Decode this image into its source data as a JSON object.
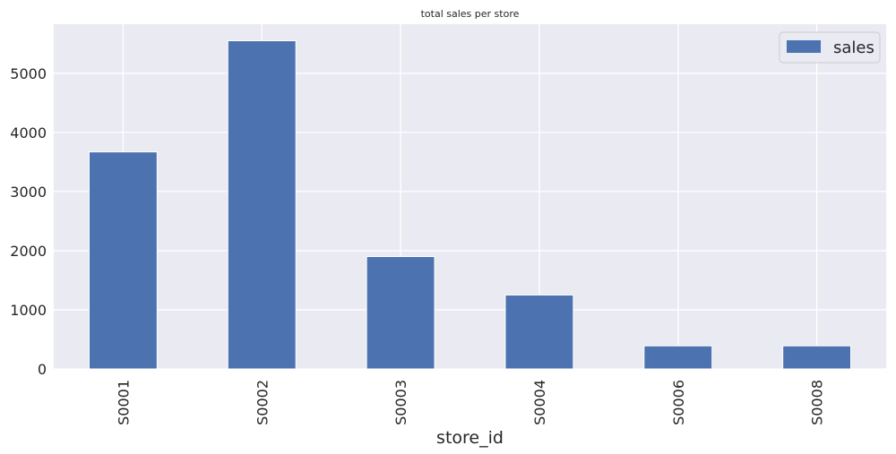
{
  "chart_data": {
    "type": "bar",
    "title": "total sales per store",
    "xlabel": "store_id",
    "ylabel": "",
    "categories": [
      "S0001",
      "S0002",
      "S0003",
      "S0004",
      "S0006",
      "S0008"
    ],
    "series": [
      {
        "name": "sales",
        "values": [
          3670,
          5550,
          1900,
          1250,
          390,
          390
        ],
        "color": "#4c72b0"
      }
    ],
    "ylim": [
      0,
      5830
    ],
    "yticks": [
      0,
      1000,
      2000,
      3000,
      4000,
      5000
    ],
    "grid": true,
    "legend_position": "top-right",
    "colors": {
      "background": "#eaeaf2",
      "grid": "#ffffff",
      "bar": "#4c72b0"
    }
  }
}
